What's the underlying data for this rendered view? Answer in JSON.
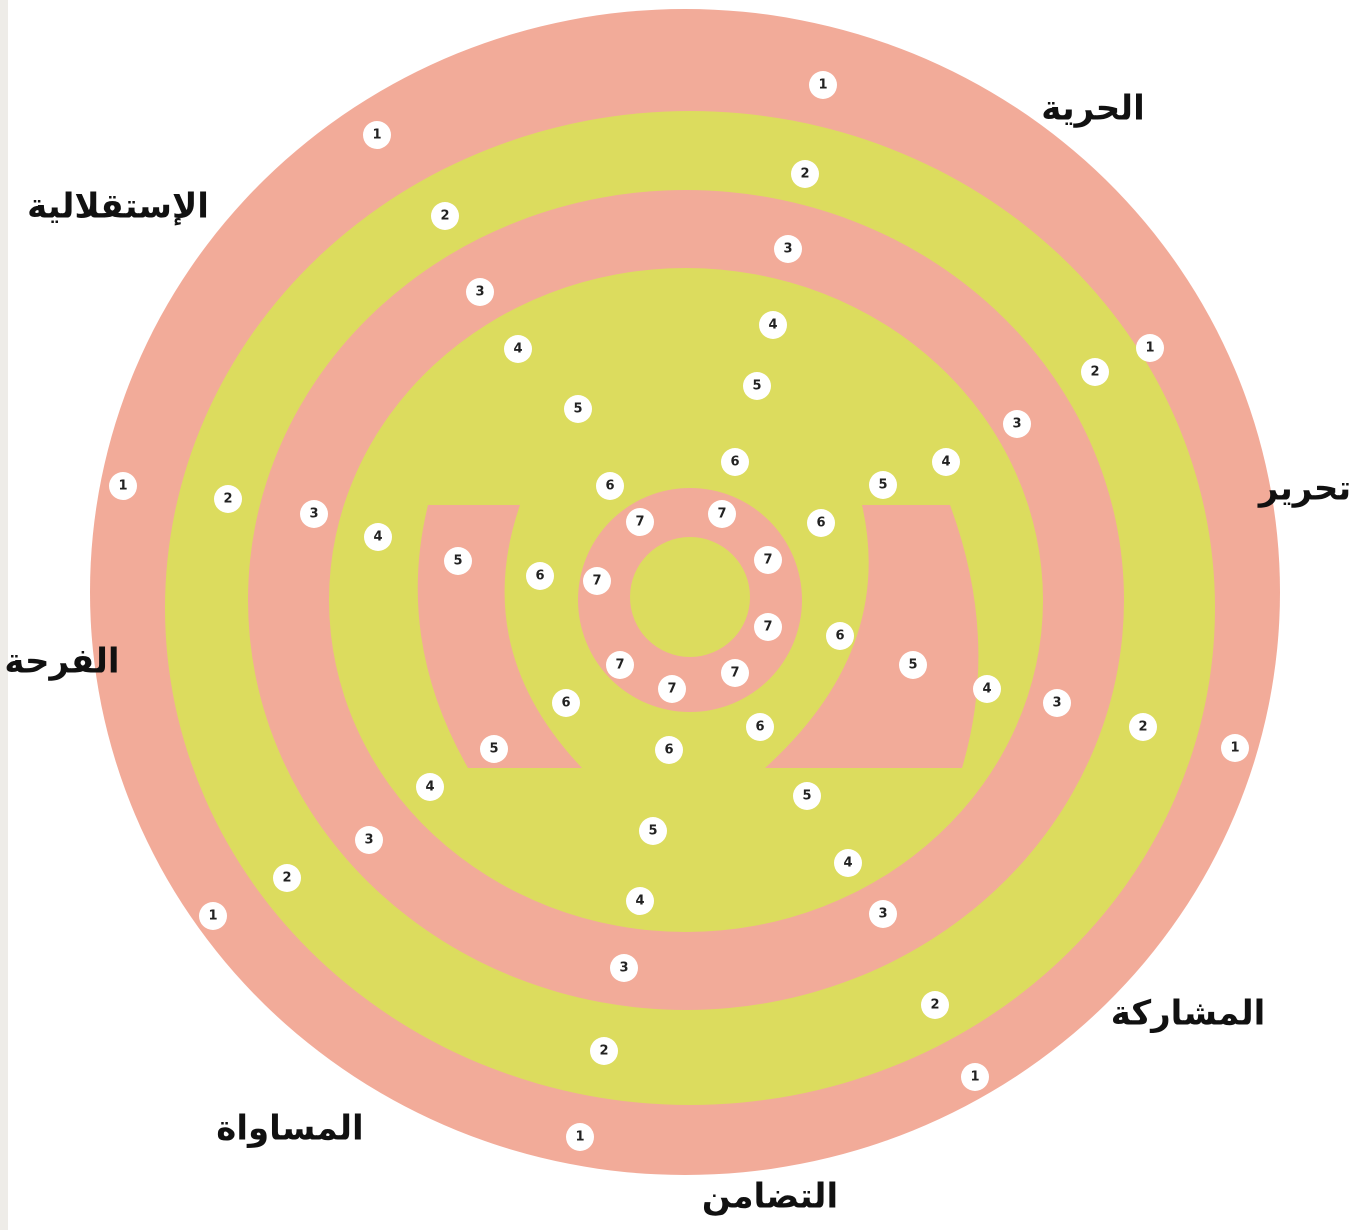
{
  "labels": [
    "الحرية",
    "الإستقلالية",
    "تحرير",
    "الفرحة",
    "المشاركة",
    "المساواة",
    "التضامن"
  ],
  "spokes": [
    [
      "1",
      "2",
      "3",
      "4",
      "5",
      "6",
      "7"
    ],
    [
      "1",
      "2",
      "3",
      "4",
      "5",
      "6",
      "7"
    ],
    [
      "1",
      "2",
      "3",
      "4",
      "5",
      "6",
      "7"
    ],
    [
      "1",
      "2",
      "3",
      "4",
      "5",
      "6",
      "7"
    ],
    [
      "1",
      "2",
      "3",
      "4",
      "5",
      "6",
      "7"
    ],
    [
      "1",
      "2",
      "3",
      "4",
      "5",
      "6",
      "7"
    ],
    [
      "1",
      "2",
      "3",
      "4",
      "5",
      "6",
      "7"
    ],
    [
      "1",
      "2",
      "3",
      "4",
      "5",
      "6",
      "7"
    ]
  ]
}
